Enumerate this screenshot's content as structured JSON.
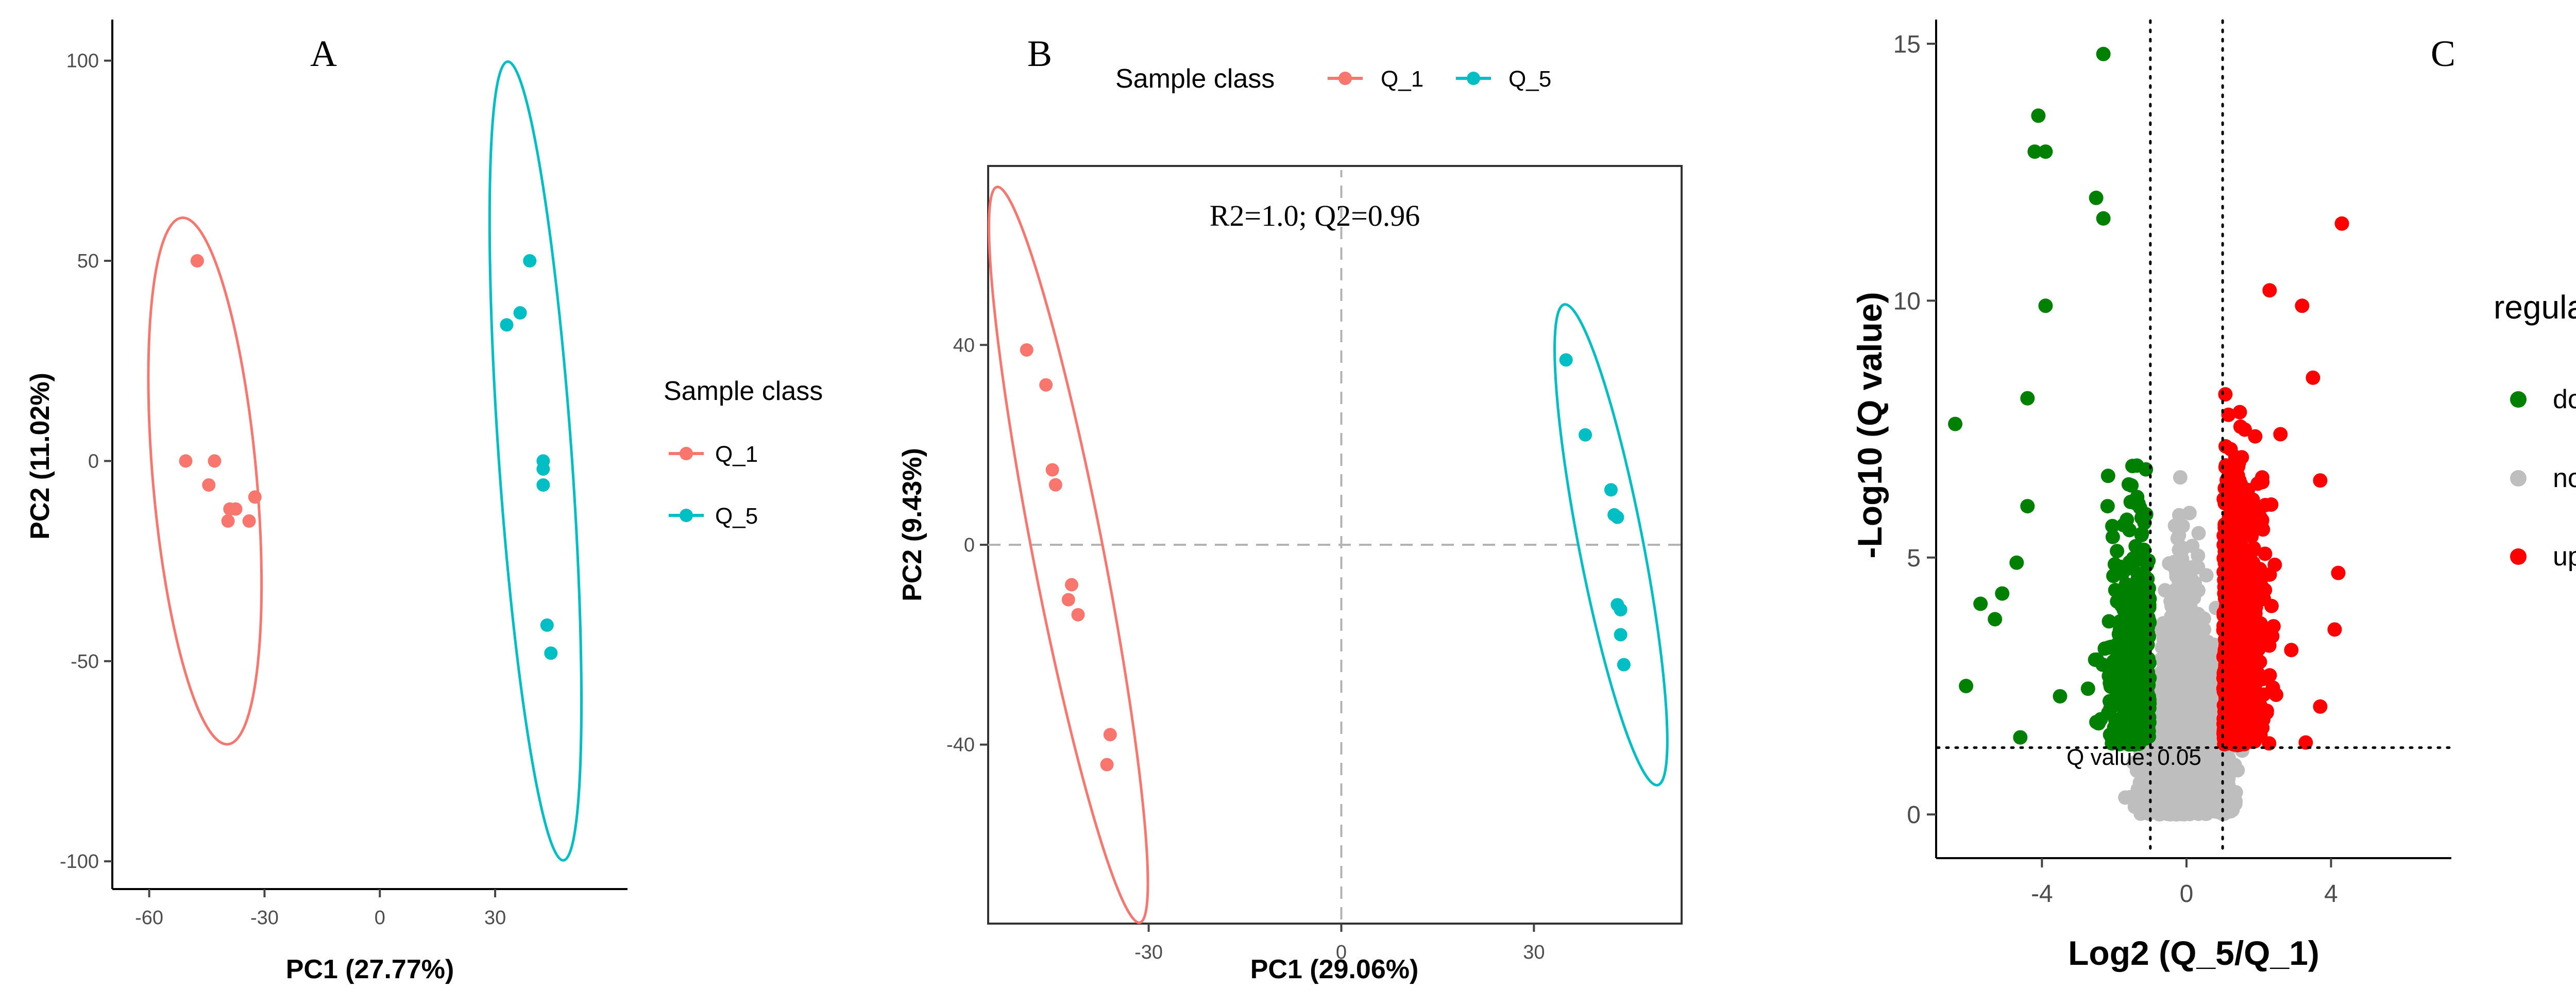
{
  "colors": {
    "q1": "#F8766D",
    "q5": "#00BFC4",
    "down": "#008000",
    "none": "#BEBEBE",
    "up": "#FF0000"
  },
  "chart_data": [
    {
      "panel": "A",
      "type": "scatter",
      "title": "",
      "xlabel": "PC1 (27.77%)",
      "ylabel": "PC2 (11.02%)",
      "xlim": [
        -70,
        58
      ],
      "ylim": [
        -105,
        110
      ],
      "xticks": [
        -60,
        -30,
        0,
        30
      ],
      "yticks": [
        100,
        50,
        0,
        -50,
        -100
      ],
      "grid": false,
      "legend": {
        "title": "Sample class",
        "placement": "right",
        "entries": [
          "Q_1",
          "Q_5"
        ]
      },
      "series": [
        {
          "name": "Q_1",
          "color": "q1",
          "points": [
            [
              -47.5,
              50
            ],
            [
              -50.5,
              0
            ],
            [
              -43,
              0
            ],
            [
              -44.5,
              -6
            ],
            [
              -39,
              -12
            ],
            [
              -37.5,
              -12
            ],
            [
              -32.5,
              -9
            ],
            [
              -39.5,
              -15
            ],
            [
              -34,
              -15
            ]
          ],
          "ellipse": {
            "center": [
              -45.5,
              -5
            ],
            "radius_x": 13.5,
            "radius_y": 66,
            "tilt_deg": -5
          }
        },
        {
          "name": "Q_5",
          "color": "q5",
          "points": [
            [
              39,
              50
            ],
            [
              36.5,
              37
            ],
            [
              33,
              34
            ],
            [
              42.5,
              0
            ],
            [
              42.5,
              -2
            ],
            [
              42.5,
              -6
            ],
            [
              43.5,
              -41
            ],
            [
              44.5,
              -48
            ]
          ],
          "ellipse": {
            "center": [
              40.5,
              0
            ],
            "radius_x": 9.5,
            "radius_y": 100,
            "tilt_deg": -4
          }
        }
      ]
    },
    {
      "panel": "B",
      "type": "scatter",
      "title": "",
      "annotation": "R2=1.0; Q2=0.96",
      "xlabel": "PC1 (29.06%)",
      "ylabel": "PC2 (9.43%)",
      "xlim": [
        -55,
        53
      ],
      "ylim": [
        -75,
        75
      ],
      "xticks": [
        -30,
        0,
        30
      ],
      "yticks": [
        40,
        0,
        -40
      ],
      "grid": false,
      "reference_lines": {
        "x": 0,
        "y": 0
      },
      "legend": {
        "title": "Sample class",
        "placement": "top",
        "entries": [
          "Q_1",
          "Q_5"
        ]
      },
      "series": [
        {
          "name": "Q_1",
          "color": "q1",
          "points": [
            [
              -49,
              39
            ],
            [
              -46,
              32
            ],
            [
              -45,
              15
            ],
            [
              -44.5,
              12
            ],
            [
              -42,
              -8
            ],
            [
              -42.5,
              -11
            ],
            [
              -41,
              -14
            ],
            [
              -36,
              -38
            ],
            [
              -36.5,
              -44
            ]
          ],
          "ellipse": {
            "center": [
              -42.5,
              -2
            ],
            "radius_x": 5.5,
            "radius_y": 75,
            "tilt_deg": -11
          }
        },
        {
          "name": "Q_5",
          "color": "q5",
          "points": [
            [
              35,
              37
            ],
            [
              38,
              22
            ],
            [
              42,
              11
            ],
            [
              42.5,
              6
            ],
            [
              43,
              5.5
            ],
            [
              43,
              -12
            ],
            [
              43.5,
              -13
            ],
            [
              43.5,
              -18
            ],
            [
              44,
              -24
            ]
          ],
          "ellipse": {
            "center": [
              42,
              0
            ],
            "radius_x": 5,
            "radius_y": 49,
            "tilt_deg": -11
          }
        }
      ]
    },
    {
      "panel": "C",
      "type": "scatter",
      "title": "",
      "xlabel": "Log2 (Q_5/Q_1)",
      "ylabel": "-Log10 (Q value)",
      "xlim": [
        -6.9,
        7.3
      ],
      "ylim": [
        -0.8,
        15.5
      ],
      "xticks": [
        -4,
        0,
        4
      ],
      "yticks": [
        0,
        5,
        10,
        15
      ],
      "grid": false,
      "thresholds": {
        "log2_fc": [
          -1,
          1
        ],
        "neg_log10_q": 1.3
      },
      "threshold_label": "Q value: 0.05",
      "legend": {
        "title": "regulated",
        "placement": "right",
        "entries": [
          "down",
          "none",
          "up"
        ]
      },
      "series": [
        {
          "name": "down",
          "color": "down",
          "rule": "log2 < -1 and -log10(q) > 1.3",
          "points": [
            [
              -2.3,
              14.8
            ],
            [
              -4.1,
              13.6
            ],
            [
              -4.2,
              12.9
            ],
            [
              -3.9,
              12.9
            ],
            [
              -2.5,
              12
            ],
            [
              -2.3,
              11.6
            ],
            [
              -3.9,
              9.9
            ],
            [
              -6.4,
              7.6
            ],
            [
              -4.4,
              6
            ],
            [
              -4.7,
              4.9
            ],
            [
              -5.7,
              4.1
            ],
            [
              -5.3,
              3.8
            ],
            [
              -6.1,
              2.5
            ],
            [
              -4.6,
              1.5
            ],
            [
              -3.5,
              2.3
            ],
            [
              -5.1,
              4.3
            ],
            [
              -4.4,
              8.1
            ]
          ]
        },
        {
          "name": "none",
          "color": "none",
          "rule": "otherwise",
          "points": []
        },
        {
          "name": "up",
          "color": "up",
          "rule": "log2 > 1 and -log10(q) > 1.3",
          "points": [
            [
              4.3,
              11.5
            ],
            [
              2.3,
              10.2
            ],
            [
              3.2,
              9.9
            ],
            [
              3.7,
              6.5
            ],
            [
              3.5,
              8.5
            ],
            [
              4.2,
              4.7
            ],
            [
              4.1,
              3.6
            ],
            [
              3.3,
              1.4
            ],
            [
              3.7,
              2.1
            ],
            [
              2.9,
              3.2
            ],
            [
              2.6,
              7.4
            ]
          ]
        }
      ]
    }
  ]
}
